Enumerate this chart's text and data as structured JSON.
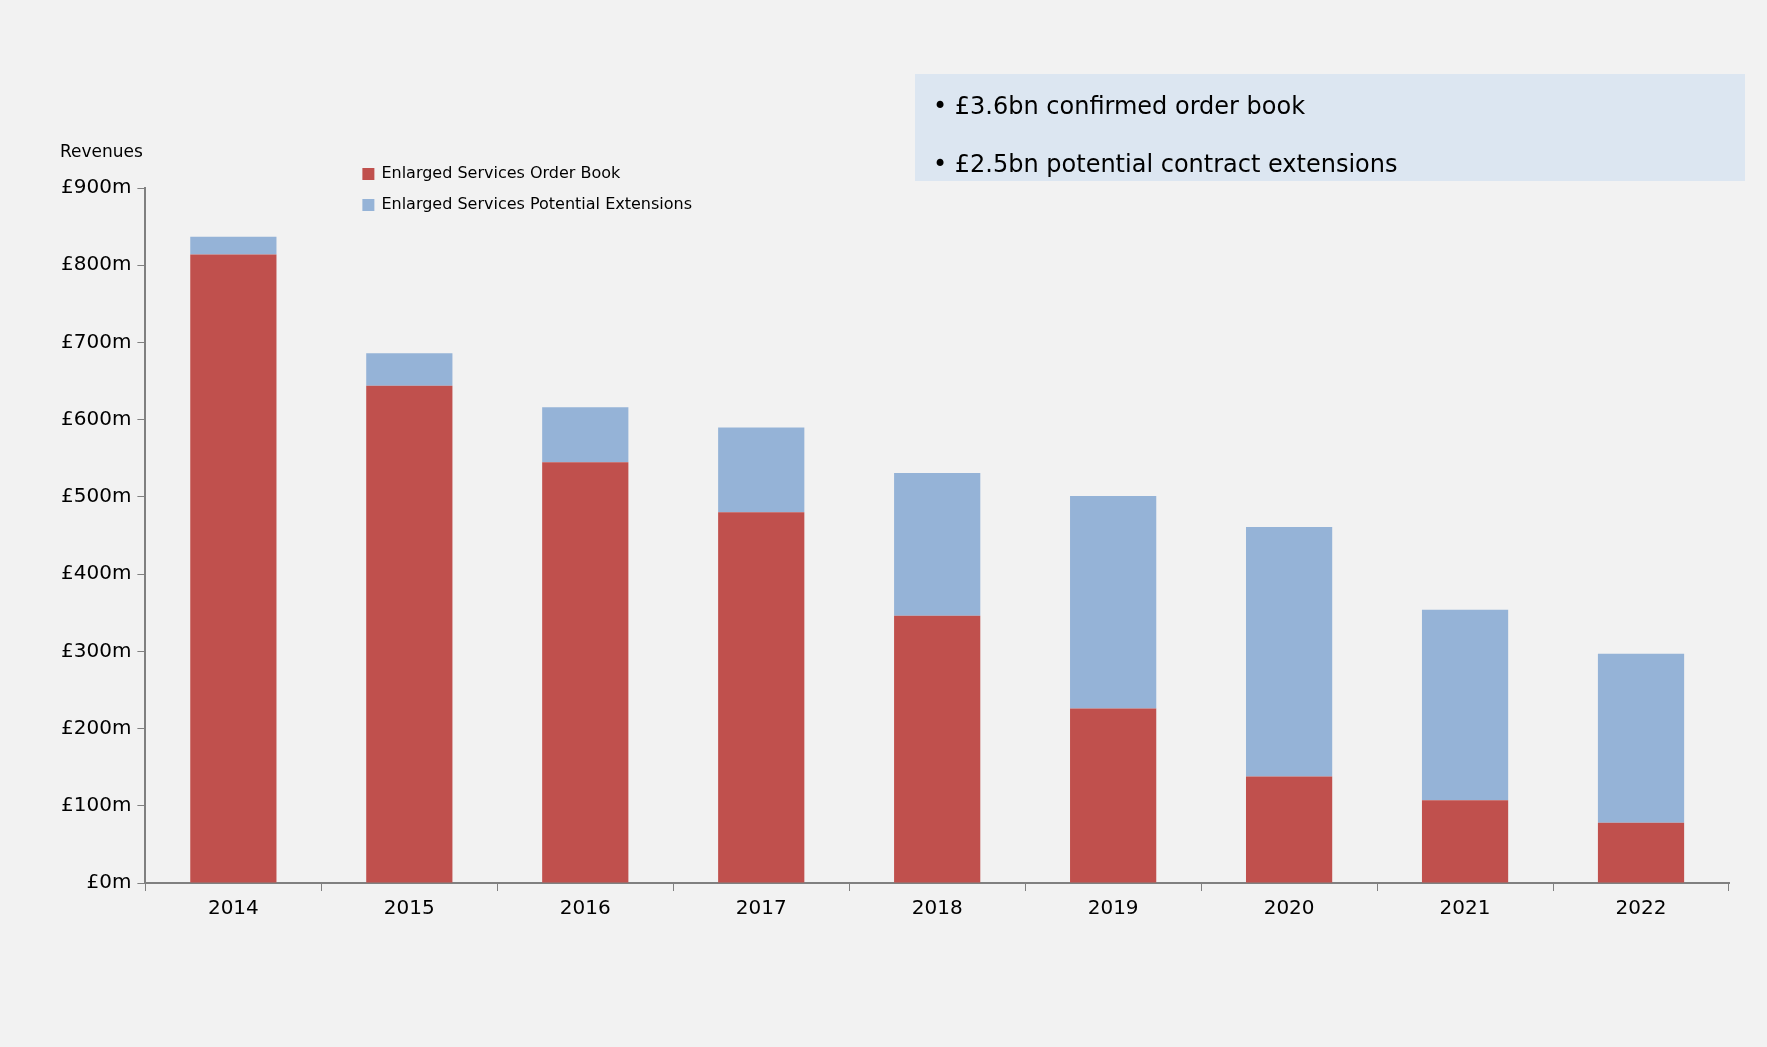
{
  "chart_data": {
    "type": "bar",
    "stacked": true,
    "ylabel": "Revenues",
    "annotations": [
      "• £3.6bn confirmed order book",
      "• £2.5bn potential contract extensions"
    ],
    "categories": [
      "2014",
      "2015",
      "2016",
      "2017",
      "2018",
      "2019",
      "2020",
      "2021",
      "2022"
    ],
    "series": [
      {
        "name": "Enlarged Services Order Book",
        "color": "#c0504d",
        "values": [
          814,
          644,
          545,
          480,
          346,
          226,
          138,
          107,
          78
        ]
      },
      {
        "name": "Enlarged Services Potential Extensions",
        "color": "#95b3d7",
        "values": [
          23,
          42,
          71,
          110,
          185,
          275,
          323,
          247,
          219
        ]
      }
    ],
    "ylim": [
      0,
      900
    ],
    "yticks": [
      {
        "value": 0,
        "label": "£0m"
      },
      {
        "value": 100,
        "label": "£100m"
      },
      {
        "value": 200,
        "label": "£200m"
      },
      {
        "value": 300,
        "label": "£300m"
      },
      {
        "value": 400,
        "label": "£400m"
      },
      {
        "value": 500,
        "label": "£500m"
      },
      {
        "value": 600,
        "label": "£600m"
      },
      {
        "value": 700,
        "label": "£700m"
      },
      {
        "value": 800,
        "label": "£800m"
      },
      {
        "value": 900,
        "label": "£900m"
      }
    ],
    "grid": false,
    "legend": "top left"
  }
}
